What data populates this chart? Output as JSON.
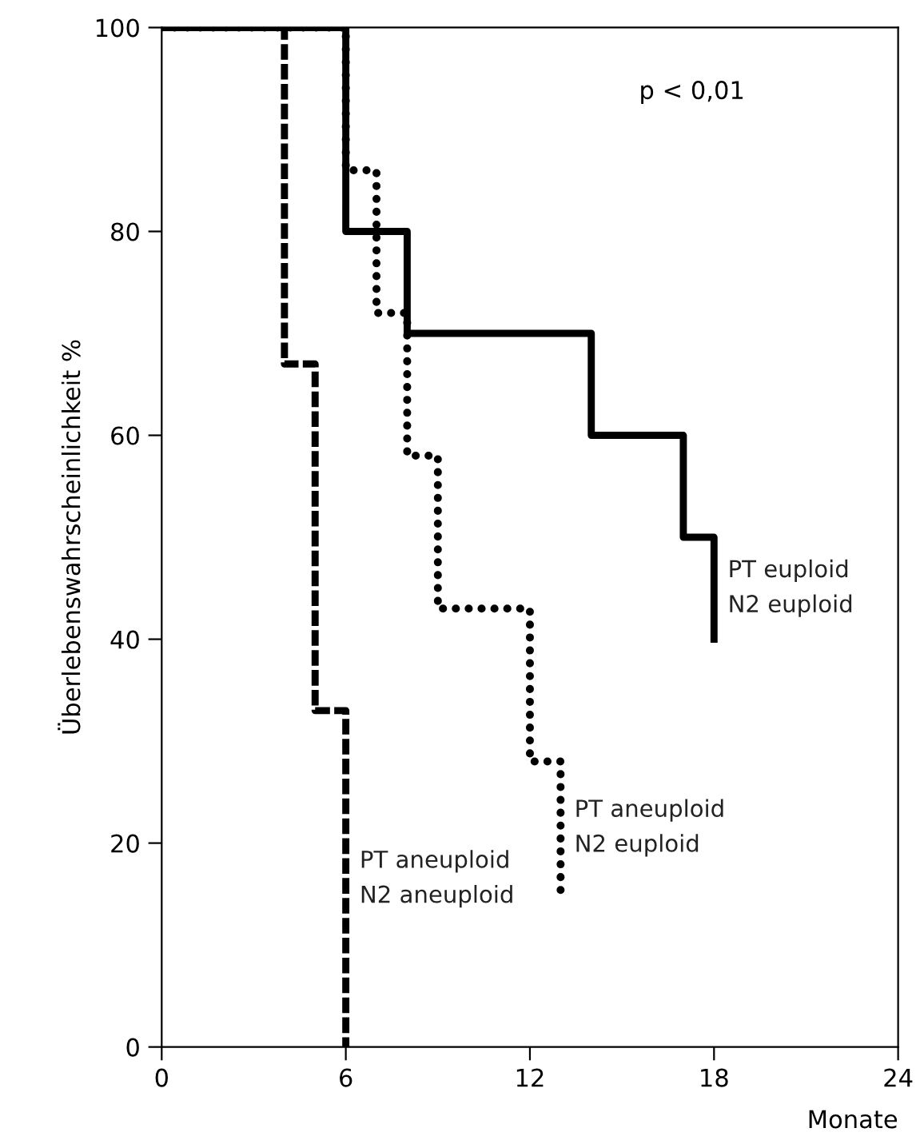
{
  "chart_data": {
    "type": "step",
    "xlabel": "Monate",
    "ylabel": "Überlebenswahrscheinlichkeit %",
    "annotations": [
      "p < 0,01"
    ],
    "xlim": [
      0,
      24
    ],
    "xticks": [
      0,
      6,
      12,
      18,
      24
    ],
    "ylim": [
      0,
      100
    ],
    "yticks": [
      0,
      20,
      40,
      60,
      80,
      100
    ],
    "grid": false,
    "legend": false,
    "marker": "none",
    "series": [
      {
        "name": "PT euploid\nN2 euploid",
        "color": "#000000",
        "line_style": "solid",
        "x": [
          0,
          6,
          8,
          14,
          17,
          18
        ],
        "values": [
          100,
          80,
          70,
          60,
          50,
          40
        ]
      },
      {
        "name": "PT aneuploid\nN2 euploid",
        "color": "#000000",
        "line_style": "dotted",
        "x": [
          0,
          6,
          7,
          8,
          9,
          12,
          13
        ],
        "values": [
          100,
          86,
          72,
          58,
          43,
          28,
          15
        ]
      },
      {
        "name": "PT aneuploid\nN2 aneuploid",
        "color": "#000000",
        "line_style": "dashed",
        "x": [
          0,
          4,
          5,
          6
        ],
        "values": [
          100,
          67,
          33,
          0
        ]
      }
    ]
  }
}
